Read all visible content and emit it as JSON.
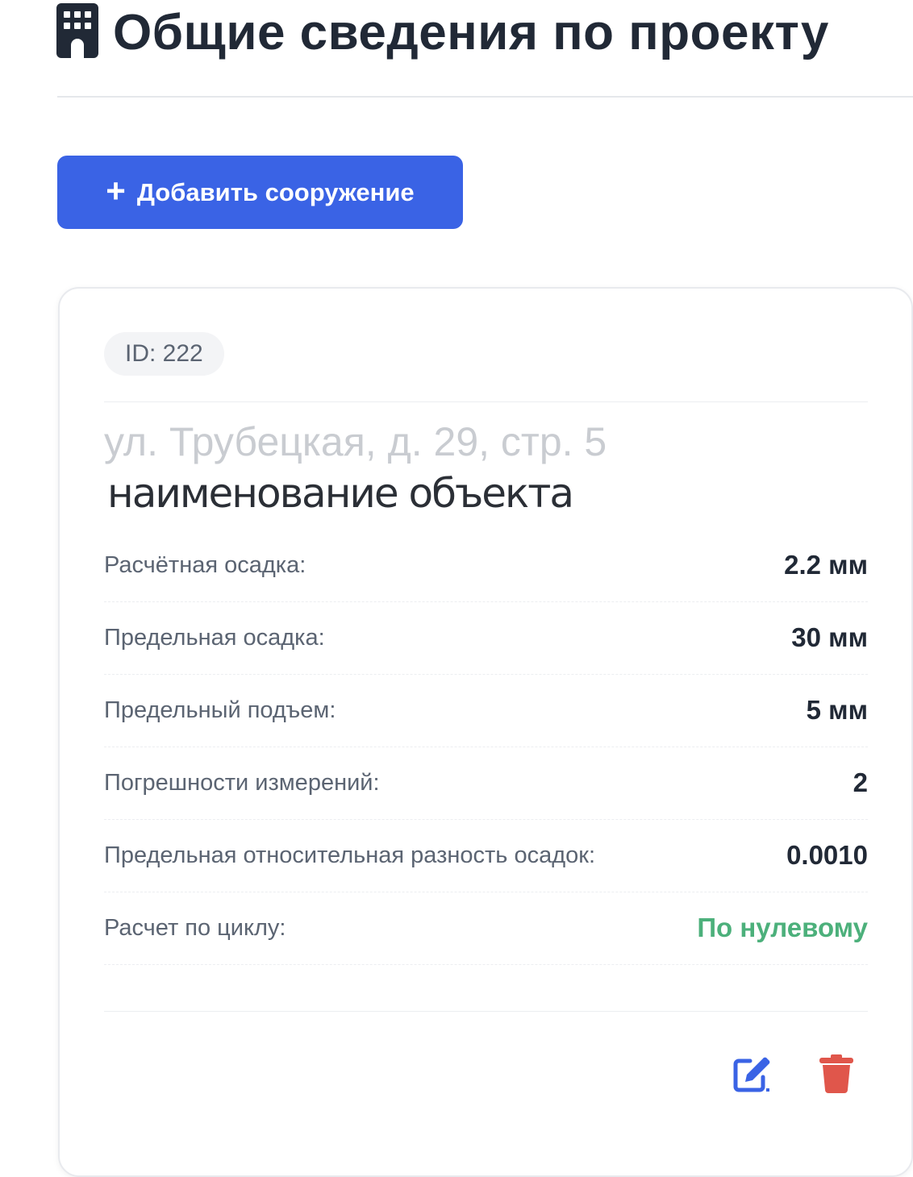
{
  "header": {
    "title": "Общие сведения по проекту",
    "icon": "building-icon"
  },
  "toolbar": {
    "add_label": "Добавить сооружение",
    "add_icon": "plus-icon"
  },
  "card": {
    "id_label": "ID: 222",
    "name": "наименование объекта",
    "address_placeholder": "ул. Трубецкая, д. 29, стр. 5",
    "fields": [
      {
        "label": "Расчётная осадка:",
        "value": "2.2 мм"
      },
      {
        "label": "Предельная осадка:",
        "value": "30 мм"
      },
      {
        "label": "Предельный подъем:",
        "value": "5 мм"
      },
      {
        "label": "Погрешности измерений:",
        "value": "2"
      },
      {
        "label": "Предельная относительная разность осадок:",
        "value": "0.0010"
      },
      {
        "label": "Расчет по циклу:",
        "value": "По нулевому"
      }
    ],
    "actions": {
      "edit_icon": "edit-icon",
      "delete_icon": "trash-icon"
    }
  },
  "colors": {
    "primary": "#3a63e5",
    "success": "#4cb07b",
    "danger": "#e0564b",
    "text": "#212936"
  }
}
